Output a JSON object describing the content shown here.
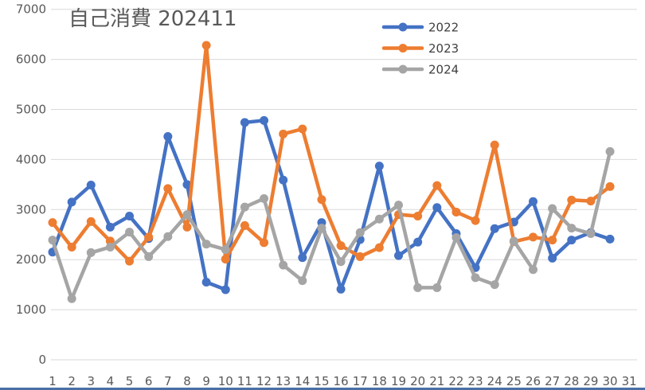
{
  "chart_data": {
    "type": "line",
    "title": "自己消費 202411",
    "xlabel": "",
    "ylabel": "",
    "x": [
      1,
      2,
      3,
      4,
      5,
      6,
      7,
      8,
      9,
      10,
      11,
      12,
      13,
      14,
      15,
      16,
      17,
      18,
      19,
      20,
      21,
      22,
      23,
      24,
      25,
      26,
      27,
      28,
      29,
      30
    ],
    "x_ticks": [
      "1",
      "2",
      "3",
      "4",
      "5",
      "6",
      "7",
      "8",
      "9",
      "10",
      "11",
      "12",
      "13",
      "14",
      "15",
      "16",
      "17",
      "18",
      "19",
      "20",
      "21",
      "22",
      "23",
      "24",
      "25",
      "26",
      "27",
      "28",
      "29",
      "30",
      "31"
    ],
    "y_ticks": [
      "0",
      "1000",
      "2000",
      "3000",
      "4000",
      "5000",
      "6000",
      "7000"
    ],
    "ylim": [
      0,
      7000
    ],
    "grid": true,
    "legend": "top-center",
    "series": [
      {
        "name": "2022",
        "color": "#4472C4",
        "values": [
          2150,
          3150,
          3490,
          2650,
          2870,
          2420,
          4460,
          3500,
          1550,
          1400,
          4740,
          4780,
          3590,
          2040,
          2740,
          1410,
          2400,
          3870,
          2080,
          2350,
          3040,
          2520,
          1840,
          2620,
          2750,
          3160,
          2030,
          2390,
          2540,
          2410
        ]
      },
      {
        "name": "2023",
        "color": "#ED7D31",
        "values": [
          2740,
          2250,
          2760,
          2370,
          1970,
          2450,
          3420,
          2650,
          6280,
          2010,
          2680,
          2340,
          4510,
          4610,
          3200,
          2280,
          2060,
          2240,
          2900,
          2870,
          3480,
          2950,
          2780,
          4290,
          2360,
          2450,
          2390,
          3190,
          3170,
          3460
        ]
      },
      {
        "name": "2024",
        "color": "#A5A5A5",
        "values": [
          2390,
          1220,
          2140,
          2250,
          2550,
          2060,
          2460,
          2900,
          2310,
          2200,
          3050,
          3220,
          1890,
          1580,
          2630,
          1960,
          2540,
          2810,
          3090,
          1440,
          1440,
          2440,
          1640,
          1500,
          2370,
          1800,
          3020,
          2630,
          2520,
          4160
        ]
      }
    ]
  }
}
